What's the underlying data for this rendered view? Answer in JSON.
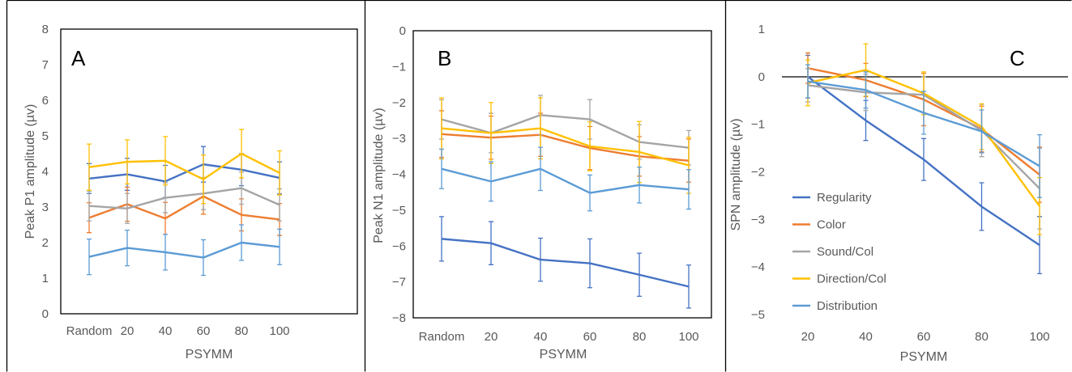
{
  "chart_data": [
    {
      "type": "line",
      "panel_label": "A",
      "categories": [
        "Random",
        "20",
        "40",
        "60",
        "80",
        "100"
      ],
      "xlabel": "PSYMM",
      "ylabel": "Peak P1 amplitude  (µv)",
      "ylim": [
        0,
        8
      ],
      "yticks": [
        "0",
        "1",
        "2",
        "3",
        "4",
        "5",
        "6",
        "7",
        "8"
      ],
      "grid": false,
      "series": [
        {
          "color": "#4472c4",
          "values": [
            3.8,
            3.92,
            3.72,
            4.2,
            4.05,
            3.82
          ],
          "err": [
            0.42,
            0.45,
            0.45,
            0.5,
            0.45,
            0.45
          ]
        },
        {
          "color": "#ed7d31",
          "values": [
            2.7,
            3.08,
            2.68,
            3.3,
            2.78,
            2.65
          ],
          "err": [
            0.42,
            0.48,
            0.45,
            0.5,
            0.45,
            0.45
          ]
        },
        {
          "color": "#a5a5a5",
          "values": [
            3.03,
            2.96,
            3.26,
            3.38,
            3.53,
            3.06
          ],
          "err": [
            0.42,
            0.42,
            0.42,
            0.45,
            0.45,
            0.45
          ]
        },
        {
          "color": "#ffc000",
          "values": [
            4.12,
            4.27,
            4.3,
            3.78,
            4.5,
            3.96
          ],
          "err": [
            0.65,
            0.62,
            0.68,
            0.68,
            0.68,
            0.62
          ]
        },
        {
          "color": "#5b9bd5",
          "values": [
            1.6,
            1.85,
            1.73,
            1.58,
            2.0,
            1.88
          ],
          "err": [
            0.5,
            0.5,
            0.5,
            0.5,
            0.5,
            0.5
          ]
        }
      ]
    },
    {
      "type": "line",
      "panel_label": "B",
      "categories": [
        "Random",
        "20",
        "40",
        "60",
        "80",
        "100"
      ],
      "xlabel": "PSYMM",
      "ylabel": "Peak N1 amplitude (µv)",
      "ylim": [
        -8,
        0
      ],
      "yticks": [
        "−8",
        "−7",
        "−6",
        "−5",
        "−4",
        "−3",
        "−2",
        "−1",
        "0"
      ],
      "grid": false,
      "series": [
        {
          "color": "#4472c4",
          "values": [
            -5.8,
            -5.92,
            -6.38,
            -6.48,
            -6.8,
            -7.13
          ],
          "err": [
            0.62,
            0.6,
            0.6,
            0.68,
            0.6,
            0.6
          ]
        },
        {
          "color": "#ed7d31",
          "values": [
            -2.88,
            -2.98,
            -2.9,
            -3.27,
            -3.5,
            -3.62
          ],
          "err": [
            0.65,
            0.6,
            0.6,
            0.6,
            0.55,
            0.6
          ]
        },
        {
          "color": "#a5a5a5",
          "values": [
            -2.47,
            -2.85,
            -2.35,
            -2.47,
            -3.1,
            -3.26
          ],
          "err": [
            0.55,
            0.55,
            0.55,
            0.55,
            0.48,
            0.48
          ]
        },
        {
          "color": "#ffc000",
          "values": [
            -2.72,
            -2.85,
            -2.72,
            -3.22,
            -3.38,
            -3.75
          ],
          "err": [
            0.85,
            0.85,
            0.85,
            0.68,
            0.85,
            0.78
          ]
        },
        {
          "color": "#5b9bd5",
          "values": [
            -3.85,
            -4.2,
            -3.85,
            -4.52,
            -4.3,
            -4.42
          ],
          "err": [
            0.55,
            0.55,
            0.6,
            0.5,
            0.5,
            0.55
          ]
        }
      ]
    },
    {
      "type": "line",
      "panel_label": "C",
      "categories": [
        "20",
        "40",
        "60",
        "80",
        "100"
      ],
      "xlabel": "PSYMM",
      "ylabel": "SPN amplitude (µv)",
      "ylim": [
        -5,
        1
      ],
      "yticks": [
        "−5",
        "−4",
        "−3",
        "−2",
        "−1",
        "0",
        "1"
      ],
      "grid": false,
      "legend": "bottom-left",
      "series": [
        {
          "name": "Regularity",
          "color": "#4472c4",
          "values": [
            0.0,
            -0.92,
            -1.74,
            -2.73,
            -3.54
          ],
          "err": [
            0.45,
            0.42,
            0.44,
            0.5,
            0.6
          ]
        },
        {
          "name": "Color",
          "color": "#ed7d31",
          "values": [
            0.18,
            -0.07,
            -0.48,
            -1.1,
            -2.06
          ],
          "err": [
            0.32,
            0.35,
            0.55,
            0.48,
            0.58
          ]
        },
        {
          "name": "Sound/Col",
          "color": "#a5a5a5",
          "values": [
            -0.18,
            -0.33,
            -0.38,
            -1.13,
            -2.35
          ],
          "err": [
            0.35,
            0.38,
            0.38,
            0.55,
            0.85
          ]
        },
        {
          "name": "Direction/Col",
          "color": "#ffc000",
          "values": [
            -0.13,
            0.14,
            -0.35,
            -1.05,
            -2.72
          ],
          "err": [
            0.48,
            0.55,
            0.45,
            0.48,
            0.6
          ]
        },
        {
          "name": "Distribution",
          "color": "#5b9bd5",
          "values": [
            -0.1,
            -0.28,
            -0.76,
            -1.15,
            -1.88
          ],
          "err": [
            0.35,
            0.38,
            0.45,
            0.45,
            0.66
          ]
        }
      ]
    }
  ]
}
